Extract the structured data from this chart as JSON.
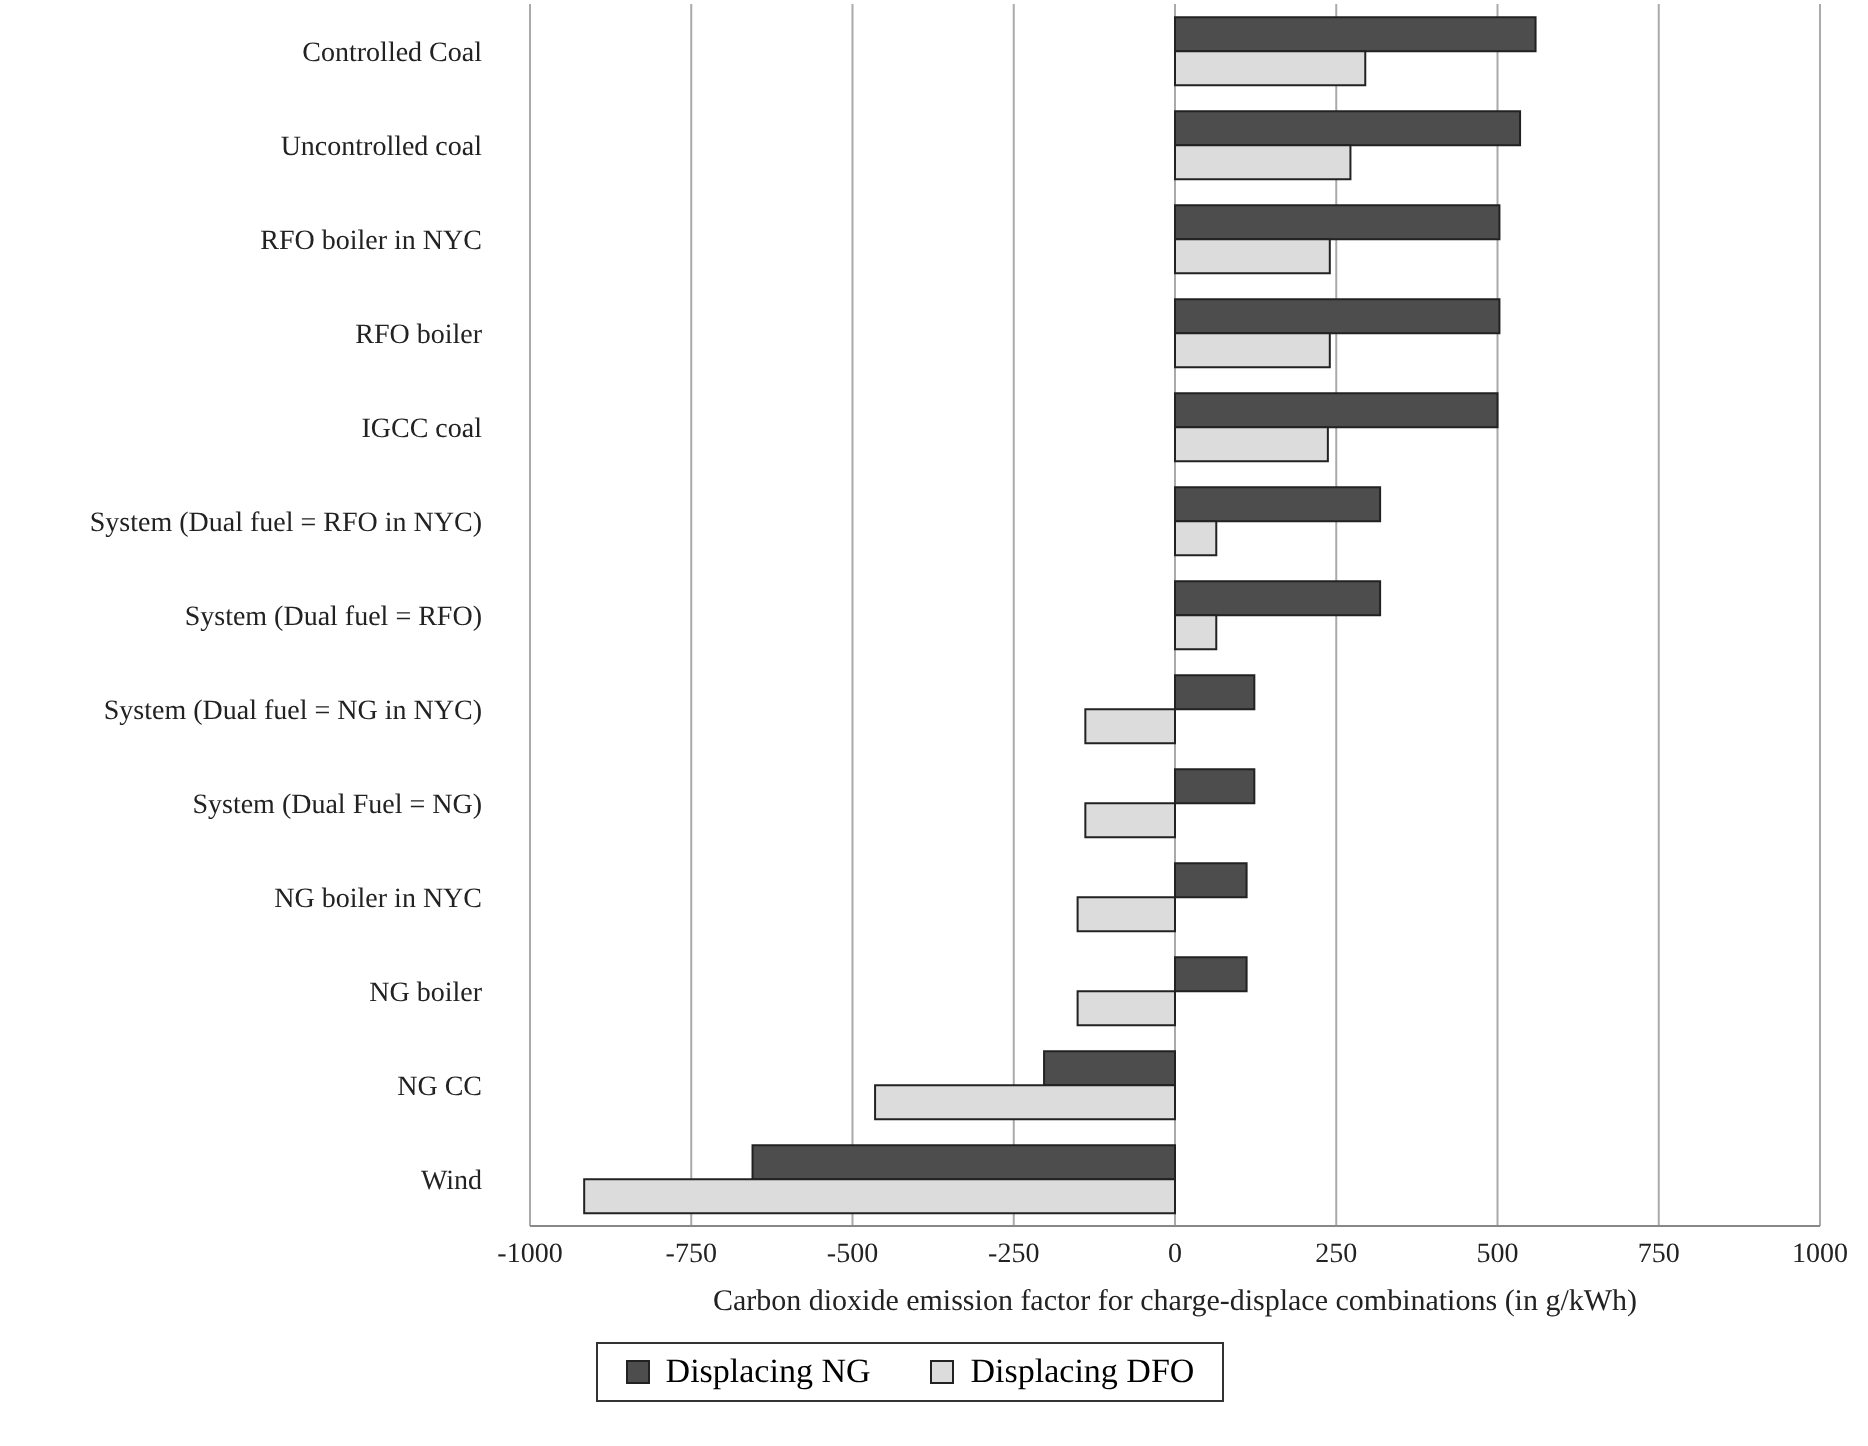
{
  "chart_data": {
    "type": "bar",
    "orientation": "horizontal",
    "xlabel": "Carbon dioxide emission factor for charge-displace combinations (in g/kWh)",
    "categories": [
      "Controlled Coal",
      "Uncontrolled coal",
      "RFO boiler in NYC",
      "RFO boiler",
      "IGCC coal",
      "System (Dual fuel = RFO in NYC)",
      "System (Dual fuel = RFO)",
      "System (Dual fuel =  NG in NYC)",
      "System (Dual Fuel = NG)",
      "NG boiler in NYC",
      "NG boiler",
      "NG CC",
      "Wind"
    ],
    "series": [
      {
        "name": "Displacing NG",
        "color": "#4d4d4d",
        "values": [
          559,
          535,
          503,
          503,
          500,
          318,
          318,
          123,
          123,
          111,
          111,
          -203,
          -655
        ]
      },
      {
        "name": "Displacing DFO",
        "color": "#dcdcdc",
        "values": [
          295,
          272,
          240,
          240,
          237,
          64,
          64,
          -139,
          -139,
          -151,
          -151,
          -465,
          -916
        ]
      }
    ],
    "xlim": [
      -1000,
      1000
    ],
    "xticks": [
      -1000,
      -750,
      -500,
      -250,
      0,
      250,
      500,
      750,
      1000
    ],
    "grid": "x",
    "legend": "bottom"
  }
}
